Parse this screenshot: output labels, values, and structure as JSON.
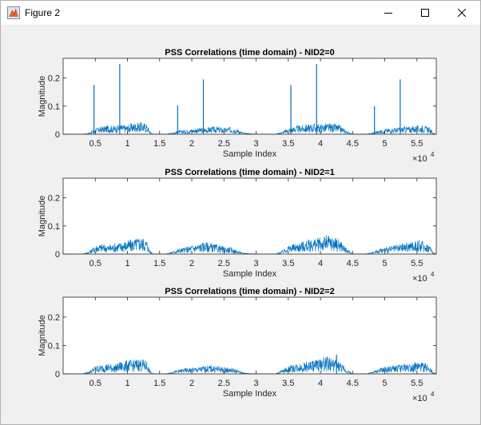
{
  "window": {
    "title": "Figure 2",
    "icons": [
      "matlab-figure-icon",
      "minimize-icon",
      "maximize-icon",
      "close-icon"
    ]
  },
  "chart_data": [
    {
      "type": "line",
      "title": "PSS Correlations (time domain) - NID2=0",
      "xlabel": "Sample Index",
      "ylabel": "Magnitude",
      "x_exponent_label": "×10",
      "x_exponent": "4",
      "xlim": [
        0,
        58000
      ],
      "ylim": [
        0,
        0.27
      ],
      "xticks": [
        5000,
        10000,
        15000,
        20000,
        25000,
        30000,
        35000,
        40000,
        45000,
        50000,
        55000
      ],
      "xtick_labels": [
        "0.5",
        "1",
        "1.5",
        "2",
        "2.5",
        "3",
        "3.5",
        "4",
        "4.5",
        "5",
        "5.5"
      ],
      "yticks": [
        0,
        0.1,
        0.2
      ],
      "ytick_labels": [
        "0",
        "0.1",
        "0.2"
      ],
      "color": "#0072bd",
      "series": [
        {
          "x": [
            0,
            3000,
            4000,
            5000,
            6000,
            7000,
            8000,
            9000,
            10000,
            11000,
            12000,
            13000,
            13500,
            14000,
            16000,
            17000,
            18000,
            19000,
            20000,
            21000,
            22000,
            23000,
            24000,
            25000,
            26000,
            27000,
            28000,
            30000,
            33000,
            34000,
            35000,
            36000,
            37000,
            38000,
            39000,
            40000,
            41000,
            42000,
            43000,
            44000,
            45000,
            46000,
            47000,
            48000,
            49000,
            50000,
            51000,
            52000,
            53000,
            54000,
            55000,
            56000,
            57000,
            57500,
            58000
          ],
          "y": [
            0,
            0,
            0.004,
            0.02,
            0.025,
            0.03,
            0.028,
            0.032,
            0.03,
            0.038,
            0.04,
            0.035,
            0.01,
            0,
            0,
            0.006,
            0.012,
            0.015,
            0.018,
            0.02,
            0.022,
            0.024,
            0.025,
            0.02,
            0.025,
            0.018,
            0.005,
            0,
            0,
            0.008,
            0.02,
            0.026,
            0.03,
            0.032,
            0.035,
            0.033,
            0.036,
            0.034,
            0.03,
            0.012,
            0,
            0,
            0,
            0.004,
            0.012,
            0.018,
            0.02,
            0.022,
            0.025,
            0.026,
            0.028,
            0.03,
            0.022,
            0.004,
            0
          ]
        }
      ],
      "spikes": [
        {
          "x": 4800,
          "y": 0.175
        },
        {
          "x": 8800,
          "y": 0.25
        },
        {
          "x": 17800,
          "y": 0.102
        },
        {
          "x": 21800,
          "y": 0.195
        },
        {
          "x": 35400,
          "y": 0.175
        },
        {
          "x": 39400,
          "y": 0.25
        },
        {
          "x": 48400,
          "y": 0.1
        },
        {
          "x": 52400,
          "y": 0.195
        }
      ]
    },
    {
      "type": "line",
      "title": "PSS Correlations (time domain) - NID2=1",
      "xlabel": "Sample Index",
      "ylabel": "Magnitude",
      "x_exponent_label": "×10",
      "x_exponent": "4",
      "xlim": [
        0,
        58000
      ],
      "ylim": [
        0,
        0.27
      ],
      "xticks": [
        5000,
        10000,
        15000,
        20000,
        25000,
        30000,
        35000,
        40000,
        45000,
        50000,
        55000
      ],
      "xtick_labels": [
        "0.5",
        "1",
        "1.5",
        "2",
        "2.5",
        "3",
        "3.5",
        "4",
        "4.5",
        "5",
        "5.5"
      ],
      "yticks": [
        0,
        0.1,
        0.2
      ],
      "ytick_labels": [
        "0",
        "0.1",
        "0.2"
      ],
      "color": "#0072bd",
      "series": [
        {
          "x": [
            0,
            3000,
            4000,
            5000,
            6000,
            7000,
            8000,
            9000,
            10000,
            11000,
            12000,
            13000,
            13500,
            14000,
            16000,
            17000,
            18000,
            19000,
            20000,
            21000,
            22000,
            23000,
            24000,
            25000,
            26000,
            27000,
            28000,
            30000,
            33000,
            34000,
            35000,
            36000,
            37000,
            38000,
            39000,
            40000,
            41000,
            42000,
            43000,
            44000,
            45000,
            46000,
            47000,
            48000,
            49000,
            50000,
            51000,
            52000,
            53000,
            54000,
            55000,
            56000,
            57000,
            57500,
            58000
          ],
          "y": [
            0,
            0,
            0.008,
            0.03,
            0.034,
            0.03,
            0.036,
            0.04,
            0.045,
            0.05,
            0.058,
            0.048,
            0.012,
            0,
            0,
            0.008,
            0.018,
            0.022,
            0.03,
            0.034,
            0.04,
            0.036,
            0.03,
            0.024,
            0.022,
            0.012,
            0.004,
            0,
            0,
            0.01,
            0.028,
            0.034,
            0.04,
            0.046,
            0.05,
            0.056,
            0.062,
            0.058,
            0.05,
            0.02,
            0,
            0,
            0,
            0.006,
            0.016,
            0.022,
            0.026,
            0.03,
            0.036,
            0.04,
            0.045,
            0.042,
            0.032,
            0.006,
            0
          ]
        }
      ],
      "spikes": []
    },
    {
      "type": "line",
      "title": "PSS Correlations (time domain) - NID2=2",
      "xlabel": "Sample Index",
      "ylabel": "Magnitude",
      "x_exponent_label": "×10",
      "x_exponent": "4",
      "xlim": [
        0,
        58000
      ],
      "ylim": [
        0,
        0.27
      ],
      "xticks": [
        5000,
        10000,
        15000,
        20000,
        25000,
        30000,
        35000,
        40000,
        45000,
        50000,
        55000
      ],
      "xtick_labels": [
        "0.5",
        "1",
        "1.5",
        "2",
        "2.5",
        "3",
        "3.5",
        "4",
        "4.5",
        "5",
        "5.5"
      ],
      "yticks": [
        0,
        0.1,
        0.2
      ],
      "ytick_labels": [
        "0",
        "0.1",
        "0.2"
      ],
      "color": "#0072bd",
      "series": [
        {
          "x": [
            0,
            3000,
            4000,
            5000,
            6000,
            7000,
            8000,
            9000,
            10000,
            11000,
            12000,
            13000,
            13500,
            14000,
            16000,
            17000,
            18000,
            19000,
            20000,
            21000,
            22000,
            23000,
            24000,
            25000,
            26000,
            27000,
            28000,
            30000,
            33000,
            34000,
            35000,
            36000,
            37000,
            38000,
            39000,
            40000,
            41000,
            42000,
            43000,
            44000,
            45000,
            46000,
            47000,
            48000,
            49000,
            50000,
            51000,
            52000,
            53000,
            54000,
            55000,
            56000,
            57000,
            57500,
            58000
          ],
          "y": [
            0,
            0,
            0.008,
            0.026,
            0.03,
            0.034,
            0.03,
            0.04,
            0.044,
            0.046,
            0.05,
            0.042,
            0.01,
            0,
            0,
            0.008,
            0.014,
            0.018,
            0.02,
            0.022,
            0.026,
            0.028,
            0.026,
            0.022,
            0.02,
            0.014,
            0.004,
            0,
            0,
            0.012,
            0.026,
            0.032,
            0.036,
            0.04,
            0.046,
            0.05,
            0.058,
            0.048,
            0.04,
            0.016,
            0,
            0,
            0,
            0.006,
            0.016,
            0.022,
            0.026,
            0.03,
            0.032,
            0.036,
            0.038,
            0.036,
            0.03,
            0.006,
            0
          ]
        }
      ],
      "spikes": [
        {
          "x": 42500,
          "y": 0.068
        }
      ]
    }
  ]
}
